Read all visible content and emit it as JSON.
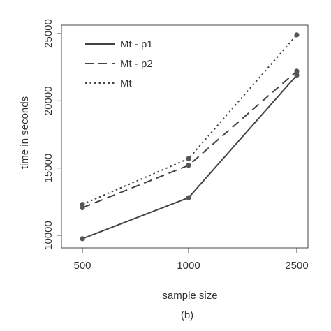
{
  "chart_data": {
    "type": "line",
    "x": [
      "500",
      "1000",
      "2500"
    ],
    "series": [
      {
        "name": "Mt - p1",
        "values": [
          9750,
          12800,
          21900
        ],
        "line_style": "solid"
      },
      {
        "name": "Mt - p2",
        "values": [
          12050,
          15200,
          22200
        ],
        "line_style": "dashed"
      },
      {
        "name": "Mt",
        "values": [
          12300,
          15700,
          24900
        ],
        "line_style": "dotted"
      }
    ],
    "xlabel": "sample size",
    "ylabel": "time in seconds",
    "ylim": [
      9500,
      26000
    ],
    "yticks": [
      "10000",
      "15000",
      "20000",
      "25000"
    ],
    "caption": "(b)",
    "legend_position": "top-left",
    "grid": false,
    "colors": {
      "line": "#444444",
      "text": "#333333",
      "axis": "#444444"
    }
  }
}
